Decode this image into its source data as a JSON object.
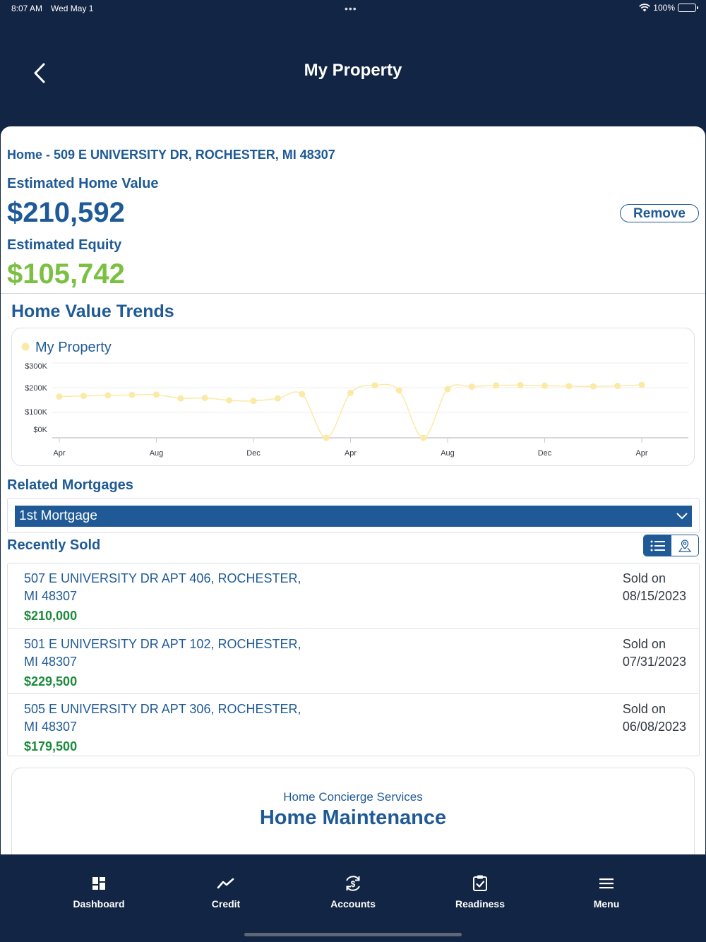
{
  "status_bar": {
    "time": "8:07 AM",
    "date": "Wed May 1",
    "battery": "100%"
  },
  "header": {
    "title": "My Property"
  },
  "property": {
    "address": "Home - 509 E UNIVERSITY DR, ROCHESTER, MI 48307",
    "estimated_value_label": "Estimated Home Value",
    "estimated_value": "$210,592",
    "remove_label": "Remove",
    "estimated_equity_label": "Estimated Equity",
    "estimated_equity": "$105,742"
  },
  "trends": {
    "title": "Home Value Trends"
  },
  "chart_data": {
    "type": "line",
    "series": [
      {
        "name": "My Property",
        "color": "#fbeaa5",
        "values": [
          165,
          168,
          170,
          172,
          173,
          158,
          160,
          150,
          148,
          158,
          175,
          0,
          180,
          210,
          190,
          0,
          195,
          205,
          210,
          211,
          209,
          207,
          206,
          208,
          212
        ]
      }
    ],
    "x_ticks": [
      "Apr",
      "Aug",
      "Dec",
      "Apr",
      "Aug",
      "Dec",
      "Apr"
    ],
    "y_ticks": [
      "$300K",
      "$200K",
      "$100K",
      "$0K"
    ],
    "ylim": [
      0,
      300
    ],
    "grid": true,
    "legend": "top-left",
    "unit": "thousands USD"
  },
  "mortgages": {
    "title": "Related Mortgages",
    "selected": "1st Mortgage"
  },
  "recently_sold": {
    "title": "Recently Sold",
    "items": [
      {
        "address": "507 E UNIVERSITY DR APT 406, ROCHESTER, MI 48307",
        "price": "$210,000",
        "sold_label": "Sold on",
        "sold_date": "08/15/2023"
      },
      {
        "address": "501 E UNIVERSITY DR APT 102, ROCHESTER, MI 48307",
        "price": "$229,500",
        "sold_label": "Sold on",
        "sold_date": "07/31/2023"
      },
      {
        "address": "505 E UNIVERSITY DR APT 306, ROCHESTER, MI 48307",
        "price": "$179,500",
        "sold_label": "Sold on",
        "sold_date": "06/08/2023"
      }
    ]
  },
  "concierge": {
    "subtitle": "Home Concierge Services",
    "title": "Home Maintenance"
  },
  "tabs": [
    {
      "label": "Dashboard",
      "icon": "dashboard-icon"
    },
    {
      "label": "Credit",
      "icon": "trend-line-icon"
    },
    {
      "label": "Accounts",
      "icon": "dollar-cycle-icon"
    },
    {
      "label": "Readiness",
      "icon": "clipboard-check-icon"
    },
    {
      "label": "Menu",
      "icon": "hamburger-icon"
    }
  ]
}
